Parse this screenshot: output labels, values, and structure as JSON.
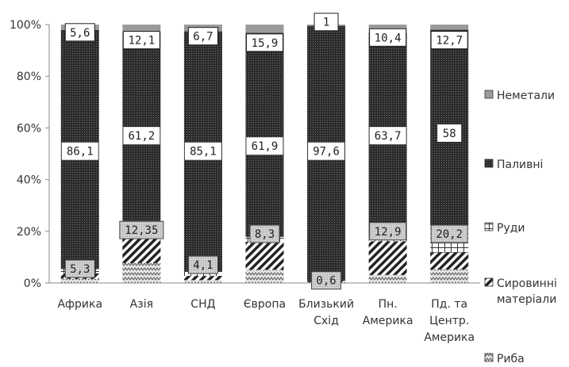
{
  "chart_data": {
    "type": "bar",
    "stacked": true,
    "percent": true,
    "categories": [
      [
        "Африка"
      ],
      [
        "Азія"
      ],
      [
        "СНД"
      ],
      [
        "Європа"
      ],
      [
        "Близький",
        "Схід"
      ],
      [
        "Пн.",
        "Америка"
      ],
      [
        "Пд. та",
        "Центр.",
        "Америка"
      ]
    ],
    "series": [
      {
        "name": "Риба",
        "color": "#c8c8c8",
        "values": [
          1.5,
          6.0,
          1.0,
          4.0,
          0.3,
          2.5,
          4.0
        ]
      },
      {
        "name": "Сировинні матеріали",
        "color": "#ffffff",
        "values": [
          2.0,
          8.0,
          1.5,
          8.5,
          0.5,
          10.5,
          5.0
        ]
      },
      {
        "name": "Руди",
        "color": "#ffffff",
        "values": [
          1.5,
          0.5,
          1.6,
          1.5,
          0.1,
          1.5,
          8.0
        ]
      },
      {
        "name": "Паливні",
        "color": "#3c3c3c",
        "values": [
          86.1,
          61.2,
          85.1,
          61.9,
          97.6,
          63.7,
          58
        ]
      },
      {
        "name": "Неметали",
        "color": "#a0a0a0",
        "values": [
          2.0,
          2.5,
          2.4,
          2.5,
          0.5,
          2.5,
          1.5
        ]
      }
    ],
    "legend_order": [
      "Неметали",
      "Паливні",
      "Руди",
      "Сировинні матеріали",
      "Риба"
    ],
    "legend_lines": [
      [
        "Неметали"
      ],
      [
        "Паливні"
      ],
      [
        "Руди"
      ],
      [
        "Сировинні",
        "матеріали"
      ],
      [
        "Риба"
      ]
    ],
    "label_boxes": [
      {
        "text": "5,6",
        "bar": 0,
        "y": 97,
        "style": "white"
      },
      {
        "text": "12,1",
        "bar": 1,
        "y": 94,
        "style": "white"
      },
      {
        "text": "6,7",
        "bar": 2,
        "y": 95.5,
        "style": "white"
      },
      {
        "text": "15,9",
        "bar": 3,
        "y": 93,
        "style": "white"
      },
      {
        "text": "1",
        "bar": 4,
        "y": 101,
        "style": "white"
      },
      {
        "text": "10,4",
        "bar": 5,
        "y": 95,
        "style": "white"
      },
      {
        "text": "12,7",
        "bar": 6,
        "y": 94,
        "style": "white"
      },
      {
        "text": "86,1",
        "bar": 0,
        "y": 51,
        "style": "plain"
      },
      {
        "text": "61,2",
        "bar": 1,
        "y": 57,
        "style": "plain"
      },
      {
        "text": "85,1",
        "bar": 2,
        "y": 51,
        "style": "plain"
      },
      {
        "text": "61,9",
        "bar": 3,
        "y": 53,
        "style": "plain"
      },
      {
        "text": "97,6",
        "bar": 4,
        "y": 51,
        "style": "plain"
      },
      {
        "text": "63,7",
        "bar": 5,
        "y": 57,
        "style": "plain"
      },
      {
        "text": "58",
        "bar": 6,
        "y": 58,
        "style": "plain"
      },
      {
        "text": "12,35",
        "bar": 1,
        "y": 20.5,
        "style": "gray"
      },
      {
        "text": "8,3",
        "bar": 3,
        "y": 19,
        "style": "gray"
      },
      {
        "text": "12,9",
        "bar": 5,
        "y": 20,
        "style": "gray"
      },
      {
        "text": "20,2",
        "bar": 6,
        "y": 19,
        "style": "gray"
      },
      {
        "text": "5,3",
        "bar": 0,
        "y": 5.5,
        "style": "gray"
      },
      {
        "text": "4,1",
        "bar": 2,
        "y": 7,
        "style": "gray"
      },
      {
        "text": "0,6",
        "bar": 4,
        "y": 1,
        "style": "gray"
      }
    ],
    "yticks": [
      "0%",
      "20%",
      "40%",
      "60%",
      "80%",
      "100%"
    ],
    "ylim": [
      0,
      100
    ],
    "legend_position": "right",
    "grid": false
  }
}
